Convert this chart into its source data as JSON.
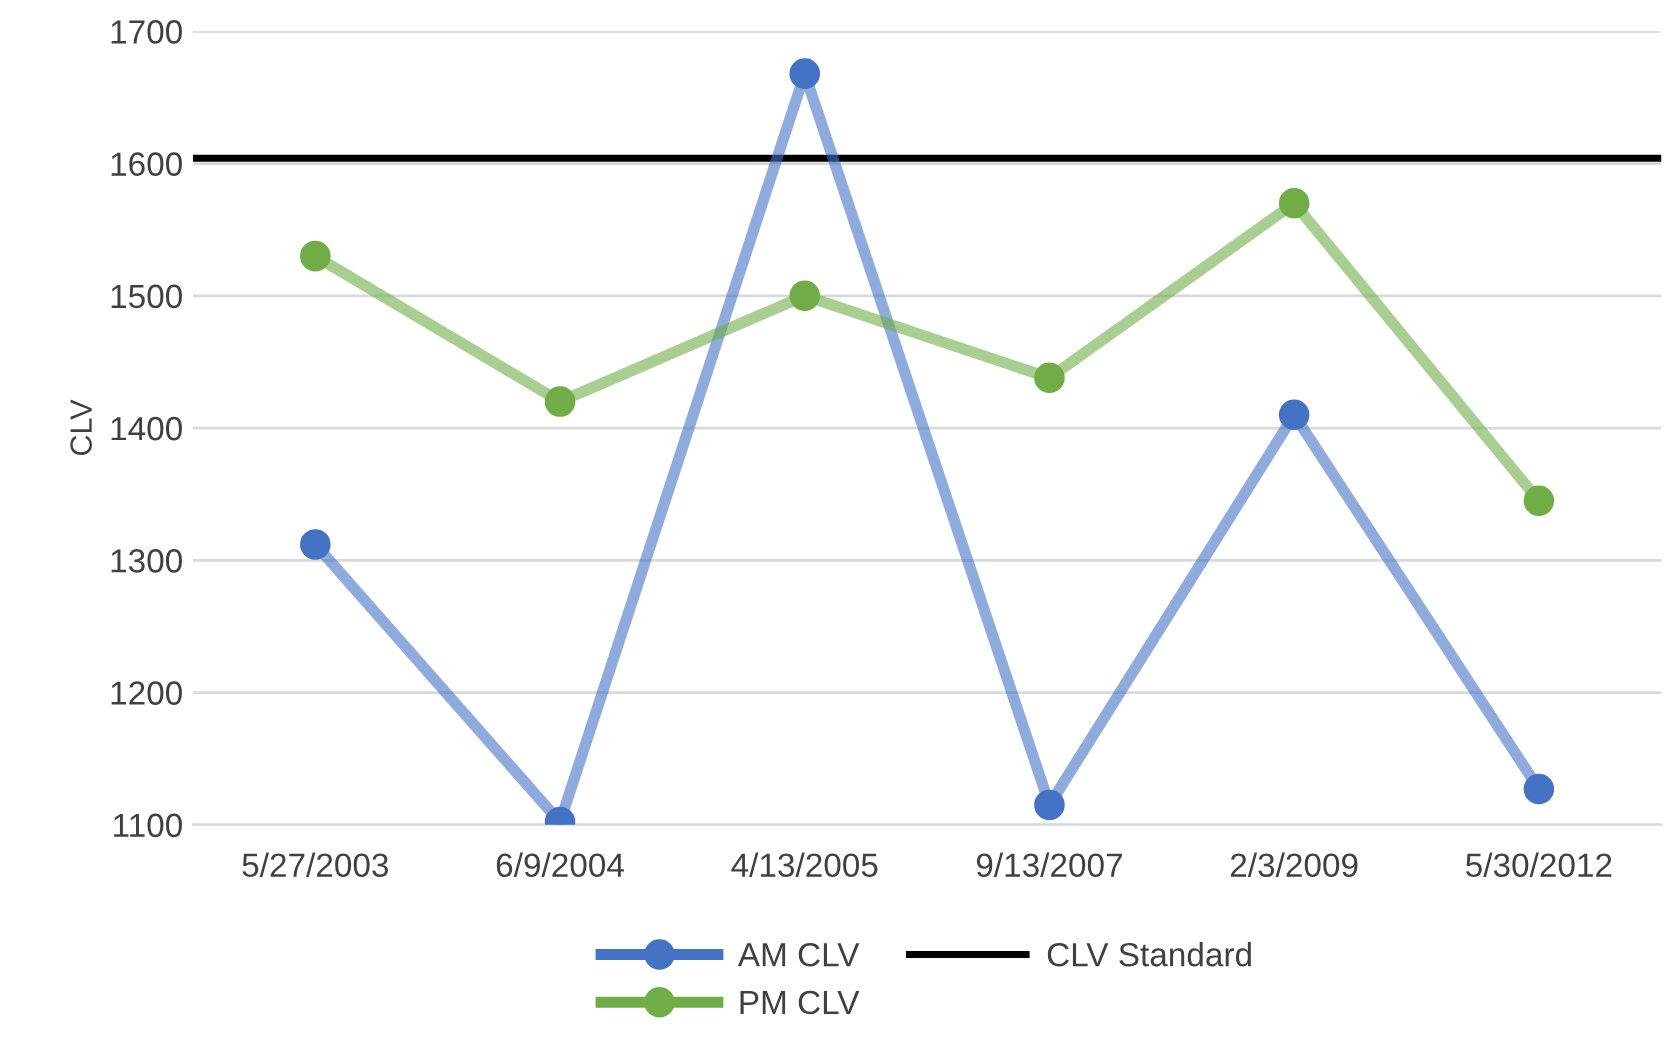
{
  "chart_data": {
    "type": "line",
    "ylabel": "CLV",
    "categories": [
      "5/27/2003",
      "6/9/2004",
      "4/13/2005",
      "9/13/2007",
      "2/3/2009",
      "5/30/2012"
    ],
    "series": [
      {
        "name": "AM CLV",
        "color": "#4472c4",
        "values": [
          1312,
          1102,
          1668,
          1115,
          1410,
          1127
        ]
      },
      {
        "name": "PM CLV",
        "color": "#70ad47",
        "values": [
          1530,
          1420,
          1500,
          1438,
          1570,
          1345
        ]
      }
    ],
    "ref_lines": [
      {
        "axis": "y",
        "value": 1604,
        "label": "CLV Standard",
        "color": "#000000",
        "line_style": "solid"
      }
    ],
    "ylim": [
      1100,
      1700
    ],
    "yticks": [
      1100,
      1200,
      1300,
      1400,
      1500,
      1600,
      1700
    ],
    "grid": "y",
    "legend": "bottom",
    "marker": "circle",
    "line_style": "solid"
  }
}
